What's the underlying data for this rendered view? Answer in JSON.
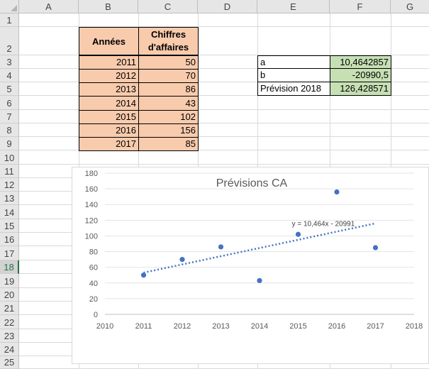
{
  "columns": [
    "A",
    "B",
    "C",
    "D",
    "E",
    "F",
    "G"
  ],
  "rows": [
    "1",
    "2",
    "3",
    "4",
    "5",
    "6",
    "7",
    "8",
    "9",
    "10",
    "11",
    "12",
    "13",
    "14",
    "15",
    "16",
    "17",
    "18",
    "19",
    "20",
    "21",
    "22",
    "23",
    "24",
    "25"
  ],
  "selected_row": "18",
  "table": {
    "header_year": "Années",
    "header_ca_1": "Chiffres",
    "header_ca_2": "d'affaires",
    "rows": [
      {
        "year": "2011",
        "value": "50"
      },
      {
        "year": "2012",
        "value": "70"
      },
      {
        "year": "2013",
        "value": "86"
      },
      {
        "year": "2014",
        "value": "43"
      },
      {
        "year": "2015",
        "value": "102"
      },
      {
        "year": "2016",
        "value": "156"
      },
      {
        "year": "2017",
        "value": "85"
      }
    ]
  },
  "params": [
    {
      "label": "a",
      "value": "10,4642857"
    },
    {
      "label": "b",
      "value": "-20990,5"
    },
    {
      "label": "Prévision 2018",
      "value": "126,428571"
    }
  ],
  "colors": {
    "orange_fill": "#f8cbad",
    "green_fill": "#c6e0b4",
    "marker": "#4472c4",
    "trend": "#4472c4"
  },
  "chart_data": {
    "type": "scatter",
    "title": "Prévisions CA",
    "trendline_label": "y = 10,464x - 20991",
    "trendline": {
      "type": "linear",
      "slope": 10.4642857,
      "intercept": -20990.5,
      "x_from": 2011,
      "x_to": 2017,
      "style": "dotted"
    },
    "x": [
      2011,
      2012,
      2013,
      2014,
      2015,
      2016,
      2017
    ],
    "y": [
      50,
      70,
      86,
      43,
      102,
      156,
      85
    ],
    "xlim": [
      2010,
      2018
    ],
    "ylim": [
      0,
      180
    ],
    "xticks": [
      "2010",
      "2011",
      "2012",
      "2013",
      "2014",
      "2015",
      "2016",
      "2017",
      "2018"
    ],
    "yticks": [
      "0",
      "20",
      "40",
      "60",
      "80",
      "100",
      "120",
      "140",
      "160",
      "180"
    ],
    "grid": true,
    "legend": false
  }
}
